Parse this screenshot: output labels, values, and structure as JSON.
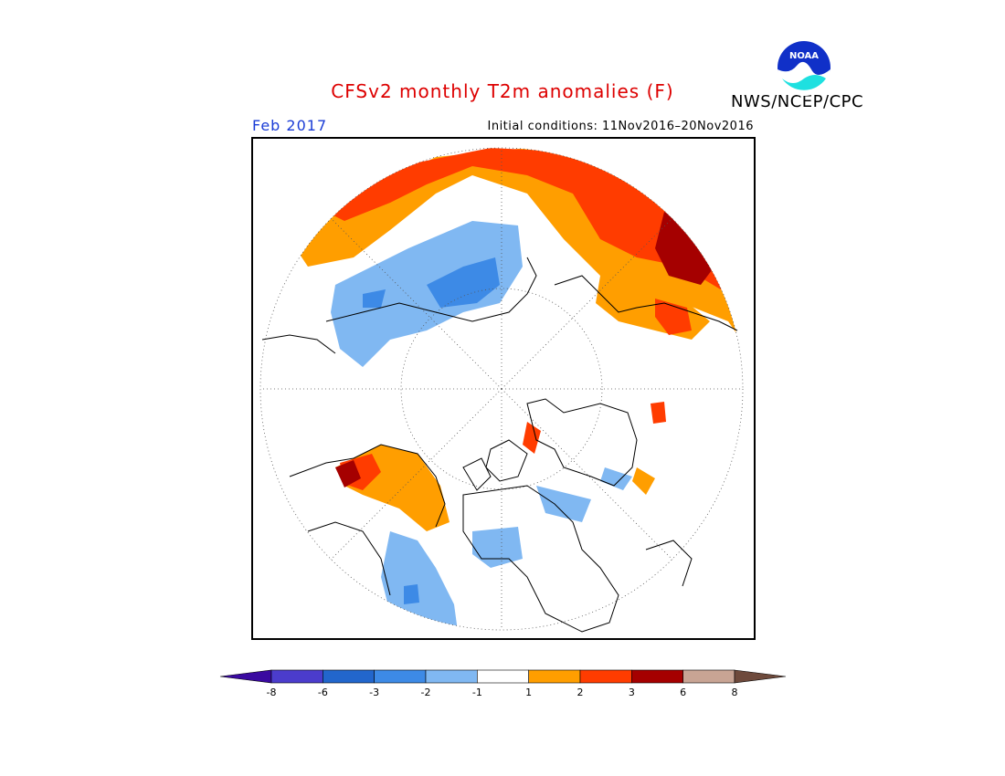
{
  "header": {
    "title": "CFSv2 monthly T2m anomalies (F)",
    "title_color": "#dd0000",
    "month": "Feb 2017",
    "month_color": "#1a3cd6",
    "initial_conditions": "Initial conditions: 11Nov2016–20Nov2016",
    "agency": "NWS/NCEP/CPC",
    "logo_text": "NOAA"
  },
  "map": {
    "projection": "north-polar-stereographic",
    "variable": "2-m temperature anomaly",
    "units": "F"
  },
  "legend": {
    "bins": [
      {
        "range": "< -8",
        "color": "#3a0aa0"
      },
      {
        "range": "-8 to -6",
        "color": "#4b3ccc"
      },
      {
        "range": "-6 to -3",
        "color": "#2266cc"
      },
      {
        "range": "-3 to -2",
        "color": "#3d8ae6"
      },
      {
        "range": "-2 to -1",
        "color": "#80b8f2"
      },
      {
        "range": "-1 to 1",
        "color": "#ffffff"
      },
      {
        "range": "1 to 2",
        "color": "#ff9e00"
      },
      {
        "range": "2 to 3",
        "color": "#ff3c00"
      },
      {
        "range": "3 to 6",
        "color": "#a50000"
      },
      {
        "range": "6 to 8",
        "color": "#c8a494"
      },
      {
        "range": "> 8",
        "color": "#6e4a3c"
      }
    ],
    "tick_labels": [
      "-8",
      "-6",
      "-3",
      "-2",
      "-1",
      "1",
      "2",
      "3",
      "6",
      "8"
    ]
  }
}
